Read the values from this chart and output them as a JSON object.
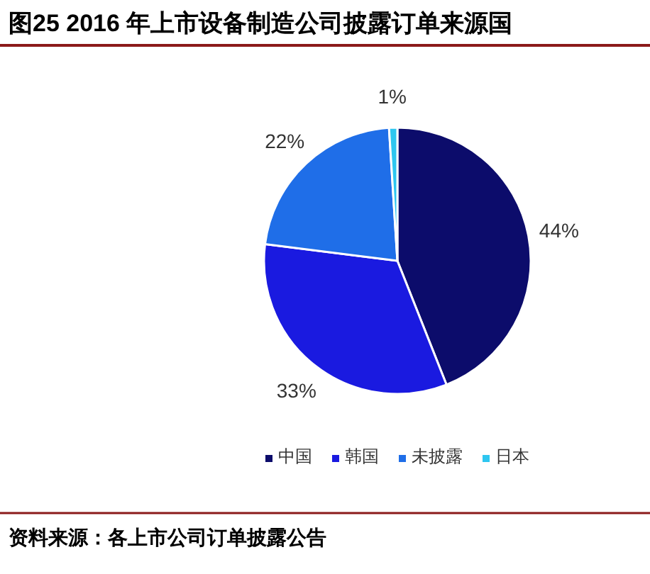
{
  "chart_data": {
    "type": "pie",
    "title": "图25 2016 年上市设备制造公司披露订单来源国",
    "categories": [
      "中国",
      "韩国",
      "未披露",
      "日本"
    ],
    "values": [
      44,
      33,
      22,
      1
    ],
    "value_labels": [
      "44%",
      "33%",
      "22%",
      "1%"
    ],
    "colors": [
      "#0c0c6b",
      "#1a1ae0",
      "#1f6ee8",
      "#2ec6f0"
    ],
    "legend": "bottom",
    "annotations": [
      "资料来源：各上市公司订单披露公告"
    ]
  }
}
